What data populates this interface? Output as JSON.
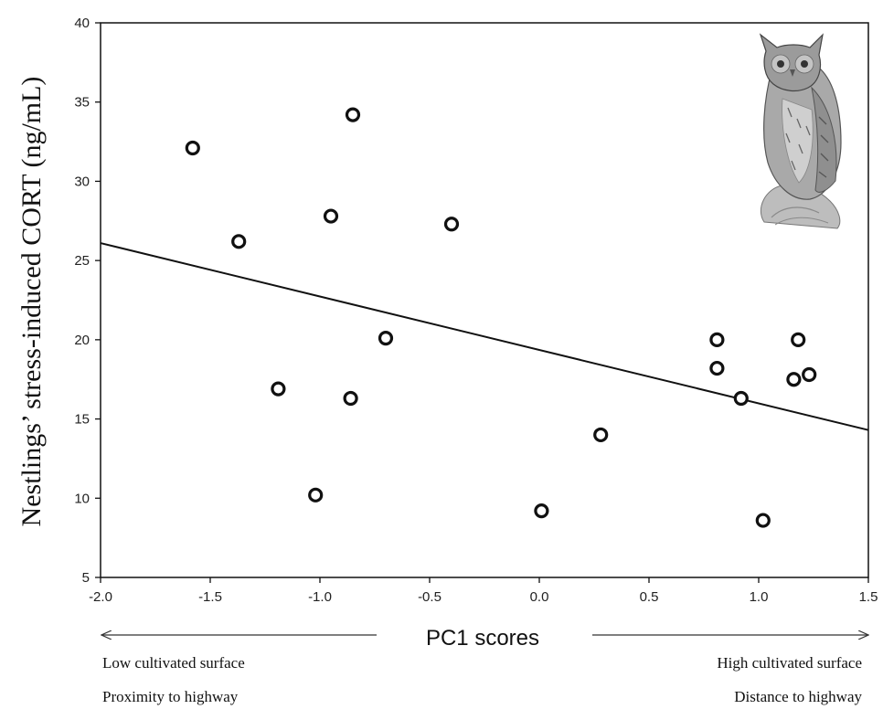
{
  "chart_data": {
    "type": "scatter",
    "title": "",
    "xlabel": "PC1 scores",
    "ylabel": "Nestlings’ stress-induced CORT (ng/mL)",
    "xlim": [
      -2.0,
      1.5
    ],
    "ylim": [
      5,
      40
    ],
    "x_ticks": [
      "-2.0",
      "-1.5",
      "-1.0",
      "-0.5",
      "0.0",
      "0.5",
      "1.0",
      "1.5"
    ],
    "y_ticks": [
      "5",
      "10",
      "15",
      "20",
      "25",
      "30",
      "35",
      "40"
    ],
    "grid": false,
    "points": [
      {
        "x": -1.58,
        "y": 32.1
      },
      {
        "x": -1.37,
        "y": 26.2
      },
      {
        "x": -1.19,
        "y": 16.9
      },
      {
        "x": -1.02,
        "y": 10.2
      },
      {
        "x": -0.95,
        "y": 27.8
      },
      {
        "x": -0.85,
        "y": 34.2
      },
      {
        "x": -0.86,
        "y": 16.3
      },
      {
        "x": -0.7,
        "y": 20.1
      },
      {
        "x": -0.4,
        "y": 27.3
      },
      {
        "x": 0.01,
        "y": 9.2
      },
      {
        "x": 0.28,
        "y": 14.0
      },
      {
        "x": 0.81,
        "y": 20.0
      },
      {
        "x": 0.81,
        "y": 18.2
      },
      {
        "x": 0.92,
        "y": 16.3
      },
      {
        "x": 1.02,
        "y": 8.6
      },
      {
        "x": 1.16,
        "y": 17.5
      },
      {
        "x": 1.18,
        "y": 20.0
      },
      {
        "x": 1.23,
        "y": 17.8
      }
    ],
    "regression_line": {
      "x": [
        -2.0,
        1.5
      ],
      "y": [
        26.1,
        14.3
      ]
    },
    "annotations": {
      "left_arrow_label_1": "Low cultivated surface",
      "left_arrow_label_2": "Proximity to highway",
      "right_arrow_label_1": "High cultivated surface",
      "right_arrow_label_2": "Distance to highway"
    },
    "inset_image": "owl-illustration"
  }
}
